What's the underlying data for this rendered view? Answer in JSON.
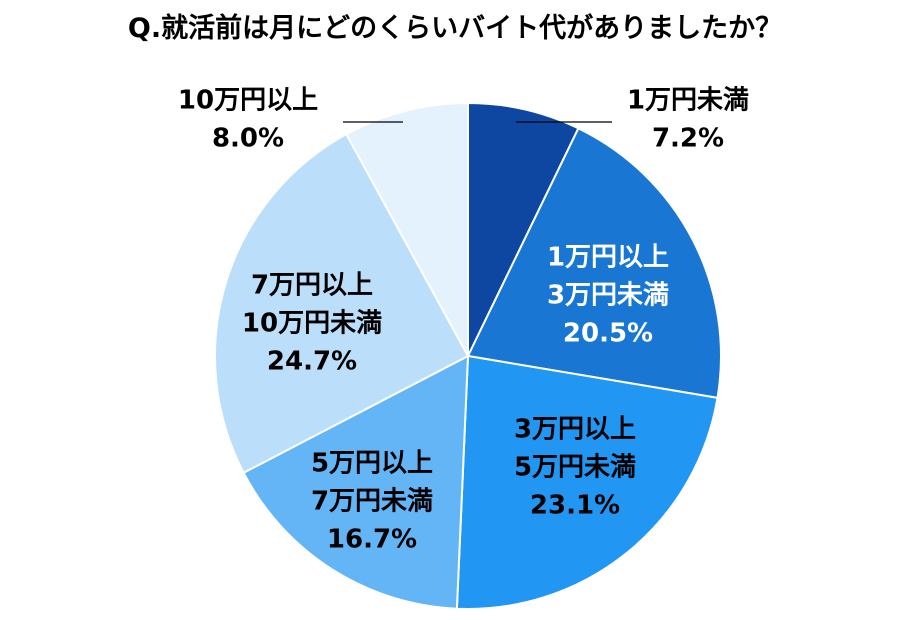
{
  "chart_data": {
    "type": "pie",
    "title": "Q.就活前は月にどのくらいバイト代がありましたか？",
    "unit": "%",
    "slices": [
      {
        "lines": [
          "1万円未満"
        ],
        "value": 7.2,
        "value_label": "7.2%",
        "color": "#0D47A1",
        "label_color": "#000000"
      },
      {
        "lines": [
          "1万円以上",
          "3万円未満"
        ],
        "value": 20.5,
        "value_label": "20.5%",
        "color": "#1976D2",
        "label_color": "#FFFFFF"
      },
      {
        "lines": [
          "3万円以上",
          "5万円未満"
        ],
        "value": 23.1,
        "value_label": "23.1%",
        "color": "#2196F3",
        "label_color": "#000000"
      },
      {
        "lines": [
          "5万円以上",
          "7万円未満"
        ],
        "value": 16.7,
        "value_label": "16.7%",
        "color": "#64B5F6",
        "label_color": "#000000"
      },
      {
        "lines": [
          "7万円以上",
          "10万円未満"
        ],
        "value": 24.7,
        "value_label": "24.7%",
        "color": "#BBDEFB",
        "label_color": "#000000"
      },
      {
        "lines": [
          "10万円以上"
        ],
        "value": 8.0,
        "value_label": "8.0%",
        "color": "#E3F2FD",
        "label_color": "#000000"
      }
    ]
  }
}
